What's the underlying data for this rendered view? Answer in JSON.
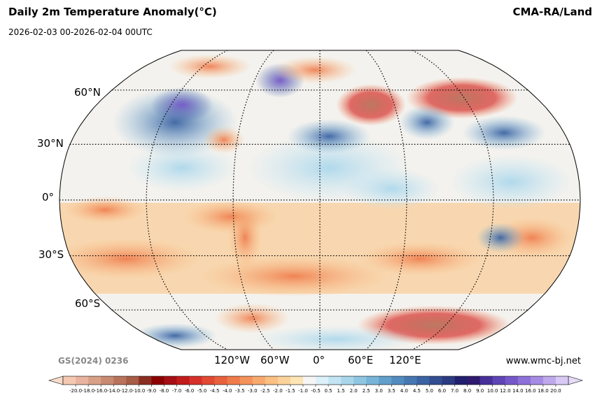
{
  "header": {
    "title": "Daily 2m Temperature Anomaly(°C)",
    "subtitle": "2026-02-03 00-2026-02-04 00UTC",
    "source": "CMA-RA/Land"
  },
  "map": {
    "projection": "Robinson",
    "graticule": "dotted",
    "lat_labels": [
      "60°N",
      "30°N",
      "0°",
      "30°S",
      "60°S"
    ],
    "lon_labels": [
      "120°W",
      "60°W",
      "0°",
      "60°E",
      "120°E"
    ]
  },
  "footer": {
    "review_number": "GS(2024) 0236",
    "website": "www.wmc-bj.net"
  },
  "colorbar": {
    "extend": "both",
    "ticks": [
      "-20.0",
      "-18.0",
      "-16.0",
      "-14.0",
      "-12.0",
      "-10.0",
      "-9.0",
      "-8.0",
      "-7.0",
      "-6.0",
      "-5.0",
      "-4.5",
      "-4.0",
      "-3.5",
      "-3.0",
      "-2.5",
      "-2.0",
      "-1.5",
      "-1.0",
      "-0.5",
      "0.5",
      "1.5",
      "2.0",
      "2.5",
      "3.0",
      "3.5",
      "4.0",
      "4.5",
      "5.0",
      "6.0",
      "7.0",
      "8.0",
      "9.0",
      "10.0",
      "12.0",
      "14.0",
      "16.0",
      "18.0",
      "20.0"
    ],
    "colors": [
      "#f5c8b2",
      "#e8b49f",
      "#d9a088",
      "#c98a72",
      "#b9735c",
      "#a75c46",
      "#8a2e22",
      "#8b0000",
      "#a50f15",
      "#c21b1b",
      "#d6302a",
      "#e04a32",
      "#e8613d",
      "#ef7a4b",
      "#f4925c",
      "#f7a96f",
      "#f9bf83",
      "#fbd39a",
      "#fde5b5",
      "#f6f6f6",
      "#ddf1fa",
      "#c3e5f3",
      "#a9d6eb",
      "#8fc6e2",
      "#77b4d8",
      "#629fcb",
      "#528bbf",
      "#4677b1",
      "#3b62a2",
      "#324e91",
      "#2a3b80",
      "#221f6e",
      "#2e1a6e",
      "#47309a",
      "#5e44b5",
      "#7558c8",
      "#8d70d8",
      "#a68be3",
      "#c0a8ec",
      "#d8c8f4"
    ],
    "extend_low_color": "#f8dccb",
    "extend_high_color": "#e6dbf8"
  }
}
